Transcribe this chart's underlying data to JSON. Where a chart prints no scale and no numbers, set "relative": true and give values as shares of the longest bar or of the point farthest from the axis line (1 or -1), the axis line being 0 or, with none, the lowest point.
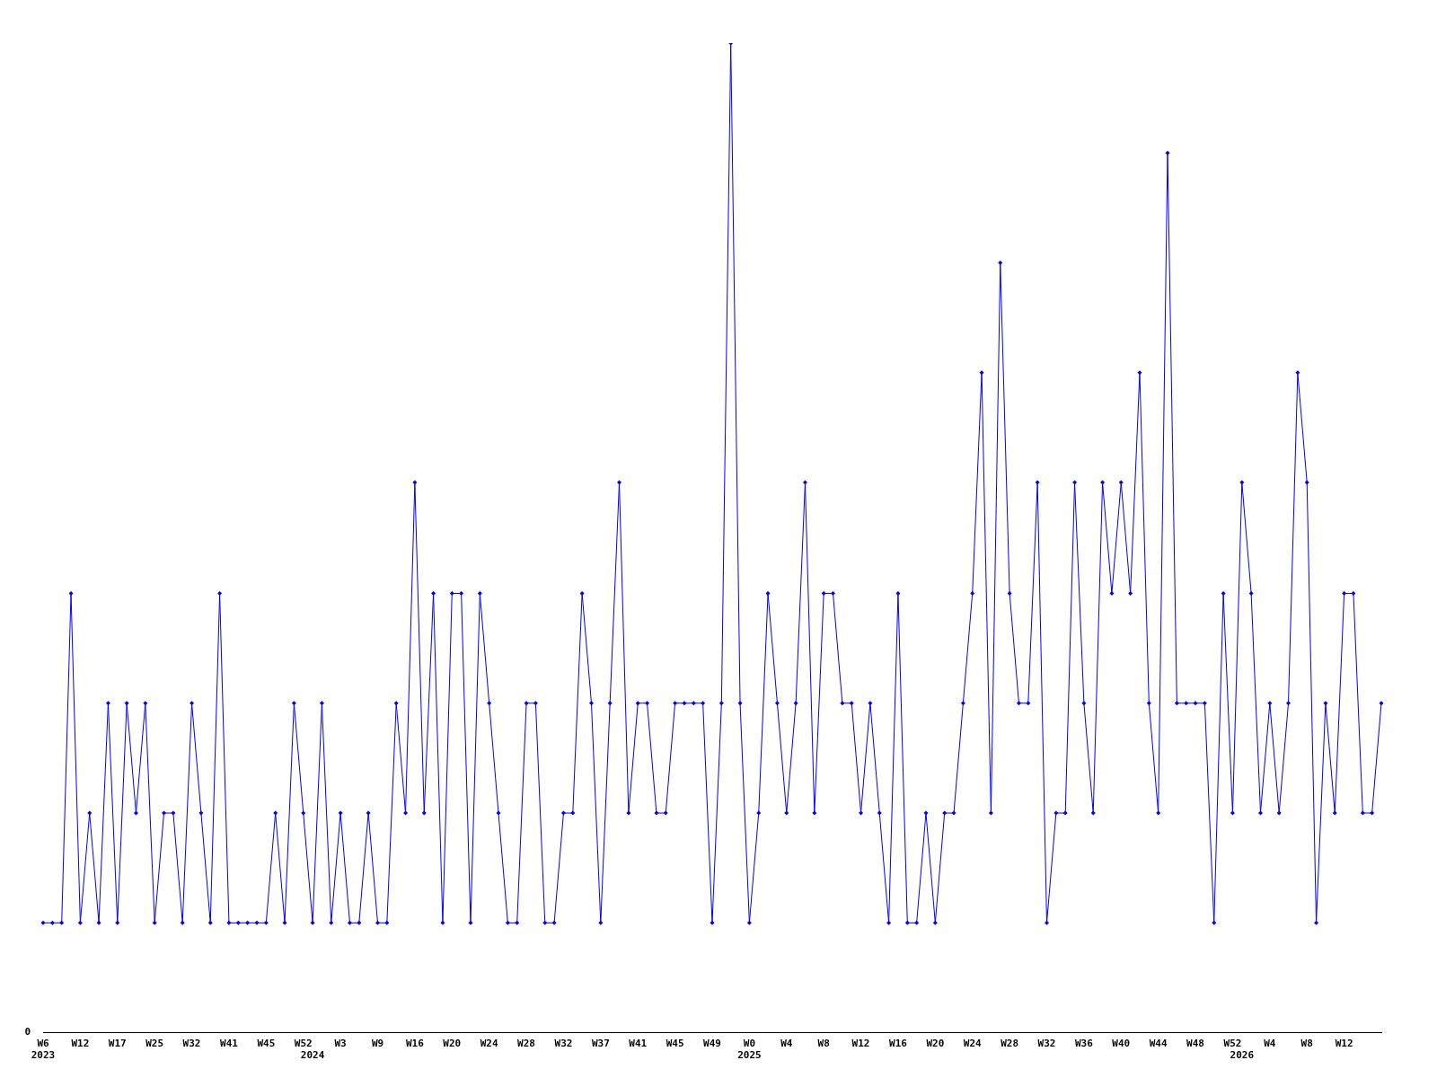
{
  "chart_data": {
    "type": "line",
    "relative": true,
    "annotations": [
      "0"
    ],
    "grid": false,
    "legend": false,
    "marker": "diamond",
    "line_style": "solid",
    "categories": [
      "W6\n2023",
      null,
      null,
      null,
      "W12",
      null,
      null,
      null,
      "W17",
      null,
      null,
      null,
      "W25",
      null,
      null,
      null,
      "W32",
      null,
      null,
      null,
      "W41",
      null,
      null,
      null,
      "W45",
      null,
      null,
      null,
      "W52",
      "\n2024",
      null,
      null,
      "W3",
      null,
      null,
      null,
      "W9",
      null,
      null,
      null,
      "W16",
      null,
      null,
      null,
      "W20",
      null,
      null,
      null,
      "W24",
      null,
      null,
      null,
      "W28",
      null,
      null,
      null,
      "W32",
      null,
      null,
      null,
      "W37",
      null,
      null,
      null,
      "W41",
      null,
      null,
      null,
      "W45",
      null,
      null,
      null,
      "W49",
      null,
      null,
      null,
      "W0\n2025",
      null,
      null,
      null,
      "W4",
      null,
      null,
      null,
      "W8",
      null,
      null,
      null,
      "W12",
      null,
      null,
      null,
      "W16",
      null,
      null,
      null,
      "W20",
      null,
      null,
      null,
      "W24",
      null,
      null,
      null,
      "W28",
      null,
      null,
      null,
      "W32",
      null,
      null,
      null,
      "W36",
      null,
      null,
      null,
      "W40",
      null,
      null,
      null,
      "W44",
      null,
      null,
      null,
      "W48",
      null,
      null,
      null,
      "W52",
      "\n2026",
      null,
      null,
      "W4",
      null,
      null,
      null,
      "W8",
      null,
      null,
      null,
      "W12",
      null,
      null,
      null,
      null
    ],
    "series": [
      {
        "color": "#0000ff",
        "values": [
          0.111,
          0.111,
          0.111,
          0.444,
          0.111,
          0.222,
          0.111,
          0.333,
          0.111,
          0.333,
          0.222,
          0.333,
          0.111,
          0.222,
          0.222,
          0.111,
          0.333,
          0.222,
          0.111,
          0.444,
          0.111,
          0.111,
          0.111,
          0.111,
          0.111,
          0.222,
          0.111,
          0.333,
          0.222,
          0.111,
          0.333,
          0.111,
          0.222,
          0.111,
          0.111,
          0.222,
          0.111,
          0.111,
          0.333,
          0.222,
          0.556,
          0.222,
          0.444,
          0.111,
          0.444,
          0.444,
          0.111,
          0.444,
          0.333,
          0.222,
          0.111,
          0.111,
          0.333,
          0.333,
          0.111,
          0.111,
          0.222,
          0.222,
          0.444,
          0.333,
          0.111,
          0.333,
          0.556,
          0.222,
          0.333,
          0.333,
          0.222,
          0.222,
          0.333,
          0.333,
          0.333,
          0.333,
          0.111,
          0.333,
          1,
          0.333,
          0.111,
          0.222,
          0.444,
          0.333,
          0.222,
          0.333,
          0.556,
          0.222,
          0.444,
          0.444,
          0.333,
          0.333,
          0.222,
          0.333,
          0.222,
          0.111,
          0.444,
          0.111,
          0.111,
          0.222,
          0.111,
          0.222,
          0.222,
          0.333,
          0.444,
          0.667,
          0.222,
          0.778,
          0.444,
          0.333,
          0.333,
          0.556,
          0.111,
          0.222,
          0.222,
          0.556,
          0.333,
          0.222,
          0.556,
          0.444,
          0.556,
          0.444,
          0.667,
          0.333,
          0.222,
          0.889,
          0.333,
          0.333,
          0.333,
          0.333,
          0.111,
          0.444,
          0.222,
          0.556,
          0.444,
          0.222,
          0.333,
          0.222,
          0.333,
          0.667,
          0.556,
          0.111,
          0.333,
          0.222,
          0.444,
          0.444,
          0.222,
          0.222,
          0.333
        ]
      }
    ]
  }
}
